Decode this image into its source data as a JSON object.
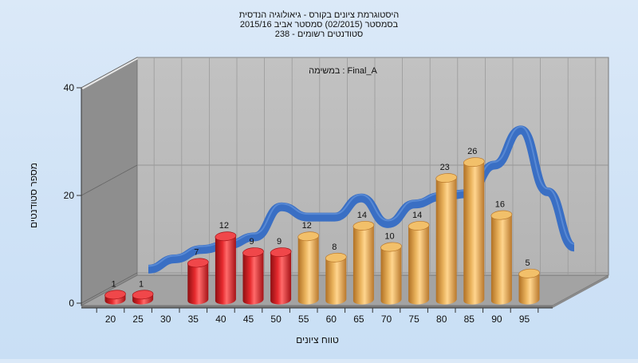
{
  "chart_data": {
    "type": "bar",
    "title_lines": [
      "היסטוגרמת ציונים בקורס - גיאולוגיה הנדסית",
      "בסמסטר  (02/2015)  סמסטר אביב 2015/16",
      "238 - סטודנטים רשומים"
    ],
    "subtitle": "במשימה : Final_A",
    "xlabel": "טווח ציונים",
    "ylabel": "מספר סטודנטים",
    "categories": [
      "20",
      "25",
      "30",
      "35",
      "40",
      "45",
      "50",
      "55",
      "60",
      "65",
      "70",
      "75",
      "80",
      "85",
      "90",
      "95"
    ],
    "values": [
      1,
      1,
      null,
      7,
      12,
      9,
      9,
      12,
      8,
      14,
      10,
      14,
      23,
      26,
      16,
      5
    ],
    "bar_colors": [
      "red",
      "red",
      "red",
      "red",
      "red",
      "red",
      "red",
      "orange",
      "orange",
      "orange",
      "orange",
      "orange",
      "orange",
      "orange",
      "orange",
      "orange"
    ],
    "curve_values": [
      1.3,
      3.5,
      5.5,
      6.5,
      8.2,
      14.6,
      12.4,
      12.4,
      16.5,
      11,
      15.2,
      16.8,
      17.4,
      23.5,
      31,
      17.8,
      6
    ],
    "yticks": [
      0,
      20,
      40
    ],
    "ylim": [
      0,
      40
    ],
    "grid": true,
    "colors": {
      "red_bar": "#dd1f24",
      "orange_bar": "#e0a042",
      "curve": "#3a6fc4",
      "back_wall": "#b8b8b8",
      "side_wall": "#8a8a8a",
      "floor": "#a0a0a0"
    }
  }
}
